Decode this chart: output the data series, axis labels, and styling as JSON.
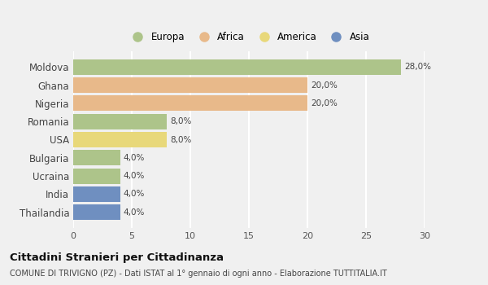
{
  "countries": [
    "Moldova",
    "Ghana",
    "Nigeria",
    "Romania",
    "USA",
    "Bulgaria",
    "Ucraina",
    "India",
    "Thailandia"
  ],
  "values": [
    28.0,
    20.0,
    20.0,
    8.0,
    8.0,
    4.0,
    4.0,
    4.0,
    4.0
  ],
  "colors": [
    "#adc48a",
    "#e8b98a",
    "#e8b98a",
    "#adc48a",
    "#e8d87a",
    "#adc48a",
    "#adc48a",
    "#6f8fc0",
    "#6f8fc0"
  ],
  "labels": [
    "28,0%",
    "20,0%",
    "20,0%",
    "8,0%",
    "8,0%",
    "4,0%",
    "4,0%",
    "4,0%",
    "4,0%"
  ],
  "legend": {
    "Europa": "#adc48a",
    "Africa": "#e8b98a",
    "America": "#e8d87a",
    "Asia": "#6f8fc0"
  },
  "xlim": [
    0,
    30
  ],
  "xticks": [
    0,
    5,
    10,
    15,
    20,
    25,
    30
  ],
  "title": "Cittadini Stranieri per Cittadinanza",
  "subtitle": "COMUNE DI TRIVIGNO (PZ) - Dati ISTAT al 1° gennaio di ogni anno - Elaborazione TUTTITALIA.IT",
  "background_color": "#f0f0f0",
  "grid_color": "#ffffff",
  "bar_height": 0.85
}
